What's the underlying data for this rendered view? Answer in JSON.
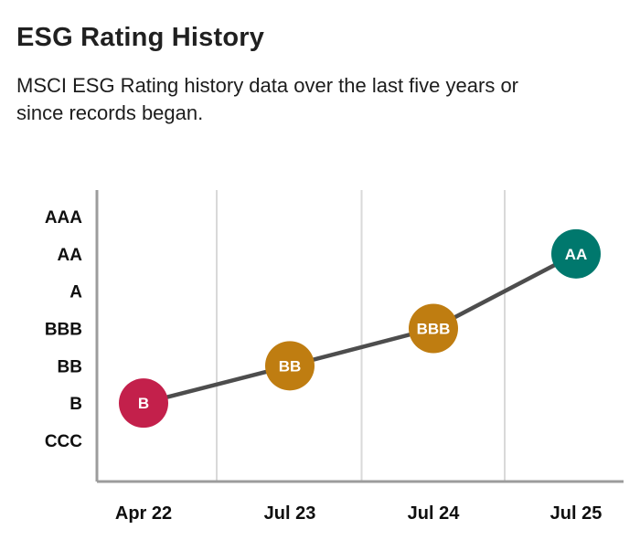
{
  "header": {
    "title": "ESG Rating History",
    "subtitle": "MSCI ESG Rating history data over the last five years or since records began."
  },
  "chart_data": {
    "type": "line",
    "title": "ESG Rating History",
    "x_categories": [
      "Apr 22",
      "Jul 23",
      "Jul 24",
      "Jul 25"
    ],
    "y_scale": [
      "AAA",
      "AA",
      "A",
      "BBB",
      "BB",
      "B",
      "CCC"
    ],
    "points": [
      {
        "x": "Apr 22",
        "rating": "B",
        "color": "#c3204b"
      },
      {
        "x": "Jul 23",
        "rating": "BB",
        "color": "#bf7d11"
      },
      {
        "x": "Jul 24",
        "rating": "BBB",
        "color": "#bf7d11"
      },
      {
        "x": "Jul 25",
        "rating": "AA",
        "color": "#00786d"
      }
    ],
    "line_color": "#4d4d4d",
    "grid": "vertical lines between x positions",
    "grid_color": "#d9d9d9",
    "axis_color": "#9c9c9c",
    "marker_label_color": "#ffffff",
    "legend": "none"
  }
}
